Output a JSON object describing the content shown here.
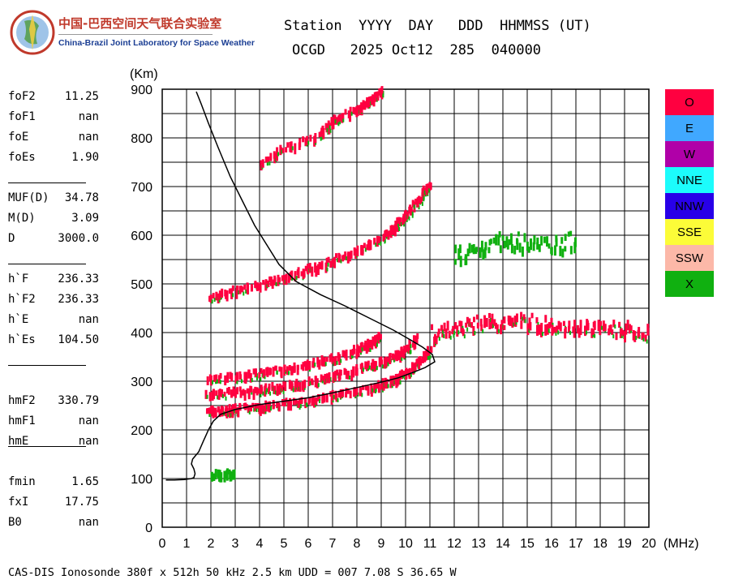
{
  "logo": {
    "cn_text": "中国-巴西空间天气联合实验室",
    "en_text": "China-Brazil Joint Laboratory for Space Weather"
  },
  "header": {
    "line1": "Station  YYYY  DAY   DDD  HHMMSS (UT)",
    "line2": "OCGD   2025 Oct12  285  040000"
  },
  "params": [
    {
      "label": "foF2",
      "value": "11.25"
    },
    {
      "label": "foF1",
      "value": "nan"
    },
    {
      "label": "foE",
      "value": "nan"
    },
    {
      "label": "foEs",
      "value": "1.90"
    },
    {
      "label": "MUF(D)",
      "value": "34.78"
    },
    {
      "label": "M(D)",
      "value": "3.09"
    },
    {
      "label": "D",
      "value": "3000.0"
    },
    {
      "label": "h`F",
      "value": "236.33"
    },
    {
      "label": "h`F2",
      "value": "236.33"
    },
    {
      "label": "h`E",
      "value": "nan"
    },
    {
      "label": "h`Es",
      "value": "104.50"
    },
    {
      "label": "hmF2",
      "value": "330.79"
    },
    {
      "label": "hmF1",
      "value": "nan"
    },
    {
      "label": "hmE",
      "value": "nan"
    },
    {
      "label": "fmin",
      "value": "1.65"
    },
    {
      "label": "fxI",
      "value": "17.75"
    },
    {
      "label": "B0",
      "value": "nan"
    }
  ],
  "legend": [
    {
      "label": "O",
      "color": "#ff0040"
    },
    {
      "label": "E",
      "color": "#40a8ff"
    },
    {
      "label": "W",
      "color": "#b000a8"
    },
    {
      "label": "NNE",
      "color": "#1cfcfc"
    },
    {
      "label": "NNW",
      "color": "#2800e8"
    },
    {
      "label": "SSE",
      "color": "#fcfc38"
    },
    {
      "label": "SSW",
      "color": "#fcb8a8"
    },
    {
      "label": "X",
      "color": "#10b010"
    }
  ],
  "footer": "CAS-DIS Ionosonde 380f x 512h 50 kHz 2.5 km UDD = 007 7.08 S 36.65 W",
  "chart_data": {
    "type": "scatter",
    "xlabel": "(MHz)",
    "ylabel": "(Km)",
    "xlim": [
      0,
      20
    ],
    "ylim": [
      0,
      900
    ],
    "x_ticks": [
      0,
      1,
      2,
      3,
      4,
      5,
      6,
      7,
      8,
      9,
      10,
      11,
      12,
      13,
      14,
      15,
      16,
      17,
      18,
      19,
      20
    ],
    "y_ticks": [
      0,
      100,
      200,
      300,
      400,
      500,
      600,
      700,
      800,
      900
    ],
    "grid": true,
    "colors": {
      "O": "#ff0040",
      "X": "#10b010",
      "profile": "#000000"
    },
    "traces": [
      {
        "name": "O",
        "points": [
          [
            1.8,
            240
          ],
          [
            2.5,
            242
          ],
          [
            3,
            245
          ],
          [
            4,
            250
          ],
          [
            5,
            256
          ],
          [
            6,
            263
          ],
          [
            7,
            272
          ],
          [
            8,
            282
          ],
          [
            9,
            295
          ],
          [
            9.5,
            305
          ],
          [
            10,
            320
          ],
          [
            10.5,
            340
          ],
          [
            11,
            370
          ]
        ]
      },
      {
        "name": "O",
        "points": [
          [
            1.8,
            275
          ],
          [
            3,
            280
          ],
          [
            4,
            285
          ],
          [
            5,
            292
          ],
          [
            6,
            300
          ],
          [
            7,
            312
          ],
          [
            8,
            326
          ],
          [
            9,
            343
          ],
          [
            9.5,
            352
          ],
          [
            10,
            368
          ],
          [
            10.5,
            392
          ]
        ]
      },
      {
        "name": "O",
        "points": [
          [
            1.8,
            305
          ],
          [
            3,
            312
          ],
          [
            4,
            318
          ],
          [
            5,
            326
          ],
          [
            6,
            336
          ],
          [
            7,
            350
          ],
          [
            8,
            368
          ],
          [
            8.5,
            380
          ],
          [
            9,
            395
          ]
        ]
      },
      {
        "name": "O",
        "points": [
          [
            1.9,
            475
          ],
          [
            3,
            488
          ],
          [
            4,
            500
          ],
          [
            5,
            515
          ],
          [
            6,
            532
          ],
          [
            7,
            550
          ],
          [
            8,
            572
          ],
          [
            9,
            598
          ],
          [
            9.5,
            618
          ],
          [
            10,
            645
          ],
          [
            10.5,
            675
          ],
          [
            11,
            710
          ]
        ]
      },
      {
        "name": "O",
        "points": [
          [
            4,
            750
          ],
          [
            5,
            780
          ],
          [
            6.5,
            810
          ],
          [
            7,
            840
          ],
          [
            8,
            860
          ],
          [
            8.5,
            880
          ],
          [
            9,
            900
          ]
        ]
      },
      {
        "name": "O",
        "points": [
          [
            11,
            400
          ],
          [
            12,
            410
          ],
          [
            13,
            420
          ],
          [
            14,
            425
          ],
          [
            15,
            422
          ],
          [
            16,
            418
          ],
          [
            17,
            412
          ],
          [
            18,
            410
          ],
          [
            19,
            408
          ],
          [
            20,
            405
          ]
        ]
      },
      {
        "name": "X",
        "points": [
          [
            12,
            560
          ],
          [
            13,
            580
          ],
          [
            14,
            590
          ],
          [
            15,
            585
          ],
          [
            16,
            580
          ],
          [
            17,
            590
          ]
        ]
      },
      {
        "name": "X",
        "points": [
          [
            2,
            110
          ],
          [
            2.5,
            112
          ],
          [
            3,
            112
          ]
        ]
      }
    ],
    "profile": [
      [
        0.15,
        97
      ],
      [
        0.5,
        97
      ],
      [
        0.9,
        98
      ],
      [
        1.2,
        100
      ],
      [
        1.3,
        102
      ],
      [
        1.35,
        110
      ],
      [
        1.3,
        120
      ],
      [
        1.2,
        130
      ],
      [
        1.25,
        140
      ],
      [
        1.5,
        155
      ],
      [
        1.7,
        178
      ],
      [
        1.9,
        200
      ],
      [
        2.1,
        218
      ],
      [
        2.4,
        232
      ],
      [
        3,
        242
      ],
      [
        4,
        252
      ],
      [
        5,
        259
      ],
      [
        6,
        266
      ],
      [
        7,
        276
      ],
      [
        8,
        287
      ],
      [
        9,
        298
      ],
      [
        9.7,
        307
      ],
      [
        10.3,
        318
      ],
      [
        10.8,
        328
      ],
      [
        11.2,
        340
      ],
      [
        11.1,
        355
      ],
      [
        10.7,
        370
      ],
      [
        10.2,
        385
      ],
      [
        9.5,
        405
      ],
      [
        8.5,
        430
      ],
      [
        7.5,
        455
      ],
      [
        6.5,
        478
      ],
      [
        5.5,
        505
      ],
      [
        4.8,
        540
      ],
      [
        4.3,
        580
      ],
      [
        3.8,
        620
      ],
      [
        3.3,
        670
      ],
      [
        2.8,
        720
      ],
      [
        2.3,
        780
      ],
      [
        1.9,
        830
      ],
      [
        1.6,
        870
      ],
      [
        1.4,
        895
      ]
    ]
  }
}
